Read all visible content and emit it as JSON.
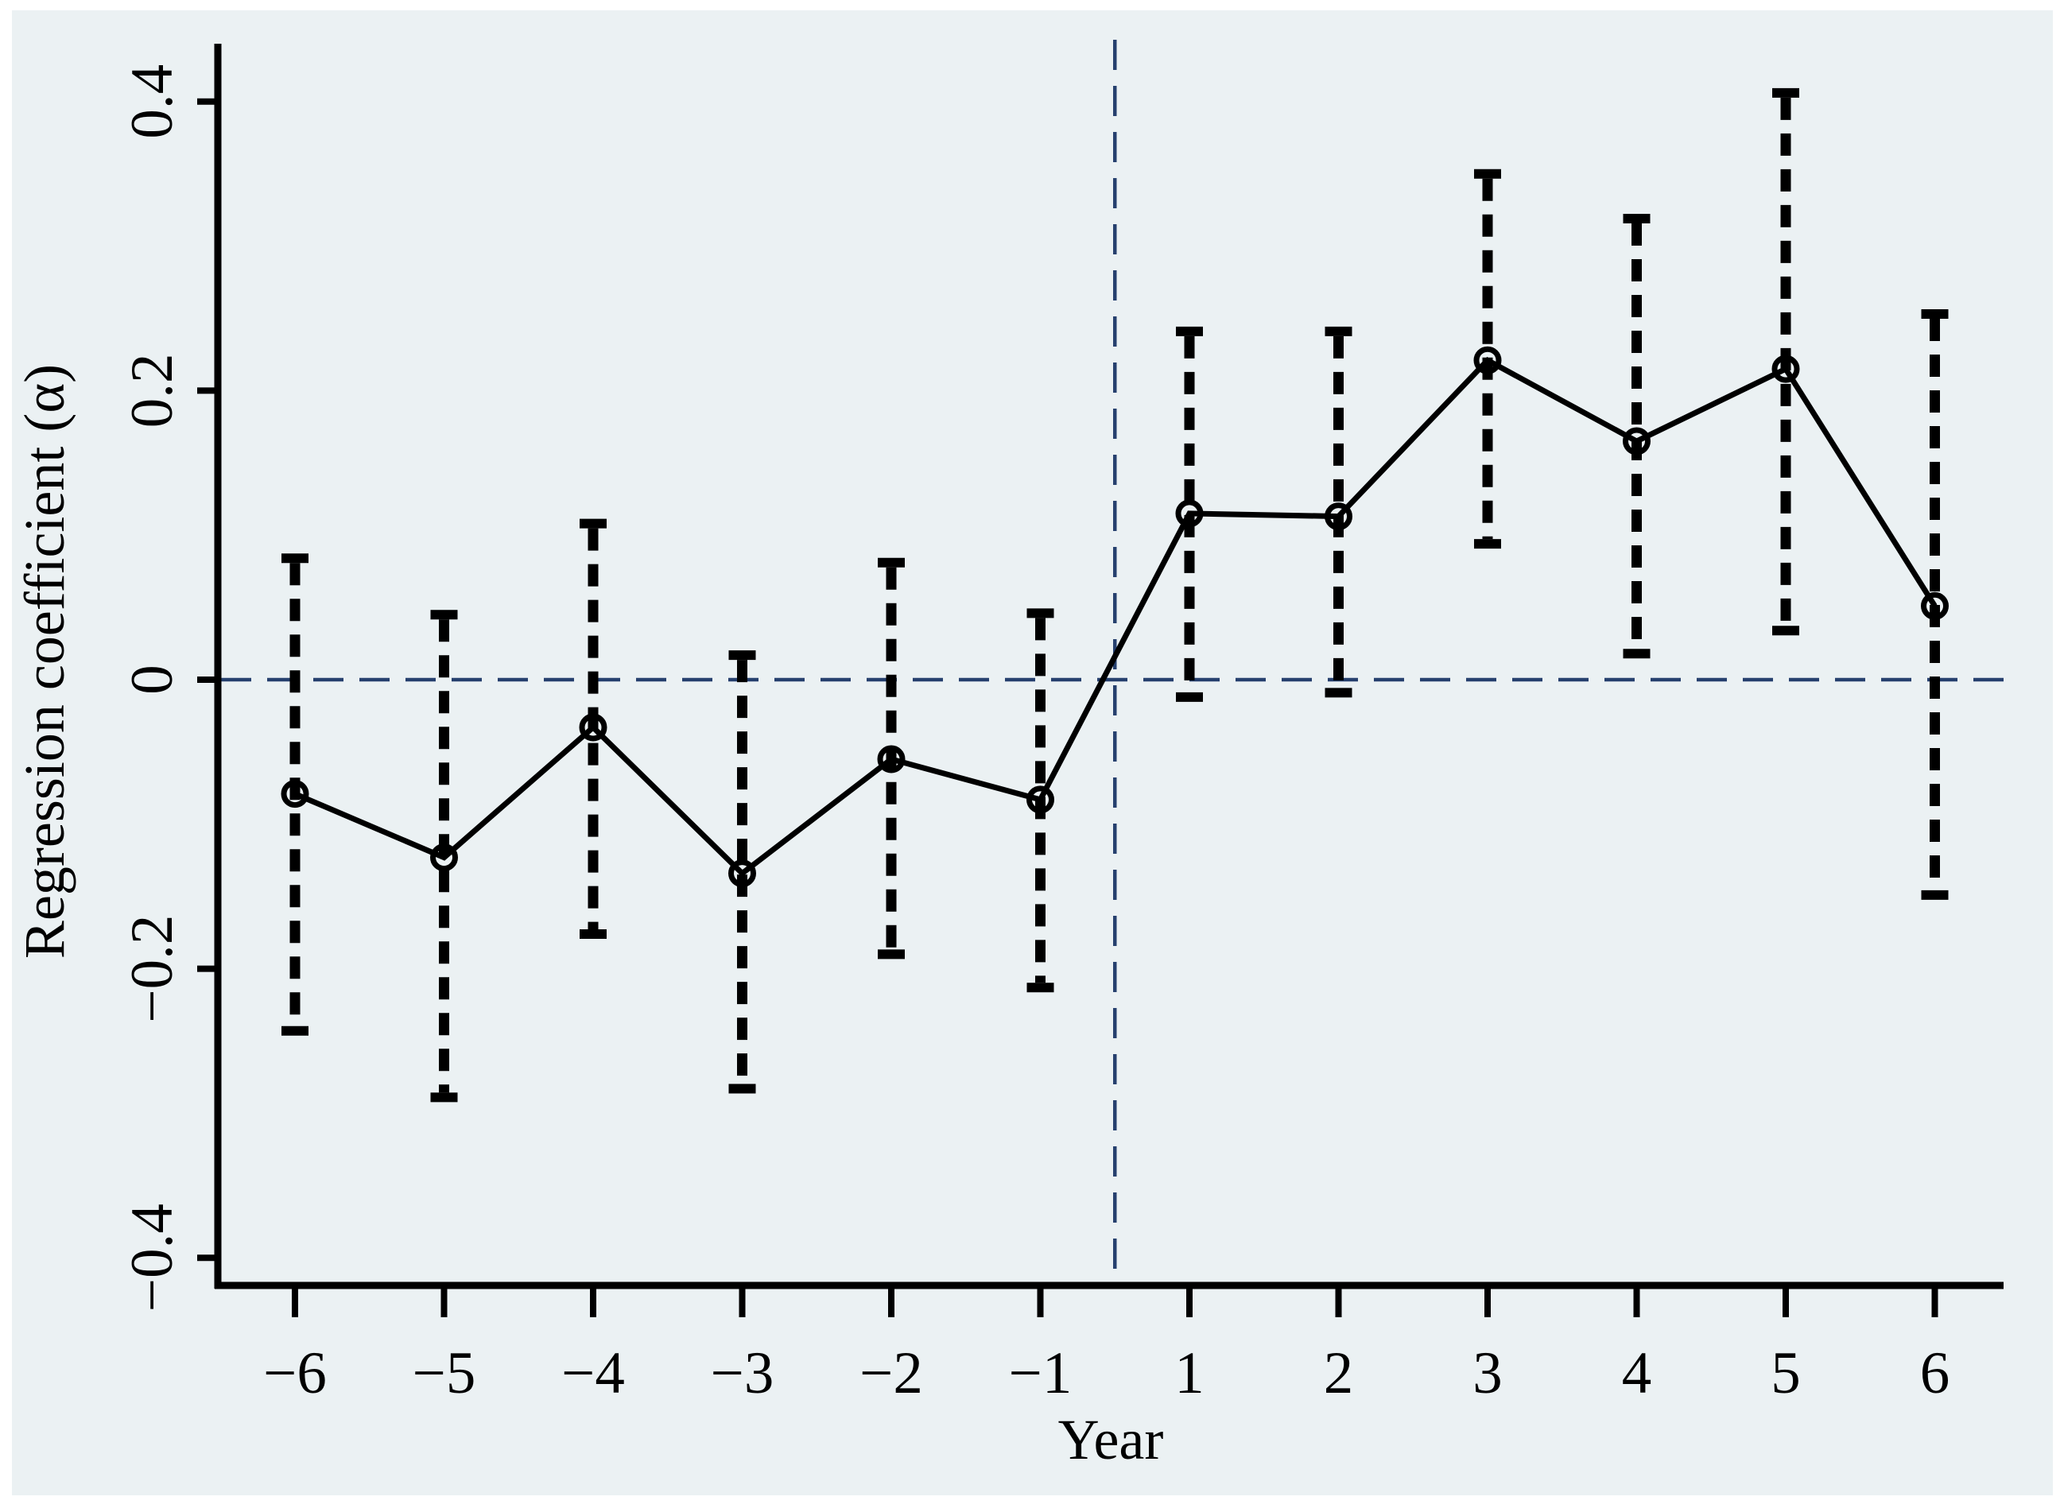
{
  "figure": {
    "y_axis_title": "Regression coefficient (α)",
    "x_axis_title": "Year",
    "colors": {
      "page_background": "#ffffff",
      "plot_background": "#ebf1f3",
      "series_color": "#000000",
      "reference_line_color": "#26406e"
    }
  },
  "chart_data": {
    "type": "line",
    "title": "",
    "xlabel": "Year",
    "ylabel": "Regression coefficient (α)",
    "categories": [
      "−6",
      "−5",
      "−4",
      "−3",
      "−2",
      "−1",
      "1",
      "2",
      "3",
      "4",
      "5",
      "6"
    ],
    "series": [
      {
        "name": "Regression coefficient (α)",
        "marker": "open-circle",
        "line_style": "solid",
        "error_bar_style": "dashed-with-caps",
        "values": [
          -0.079,
          -0.123,
          -0.033,
          -0.134,
          -0.055,
          -0.083,
          0.115,
          0.113,
          0.221,
          0.165,
          0.215,
          0.051
        ],
        "ci_low": [
          -0.243,
          -0.289,
          -0.176,
          -0.283,
          -0.19,
          -0.213,
          -0.012,
          -0.009,
          0.094,
          0.018,
          0.034,
          -0.149
        ],
        "ci_high": [
          0.084,
          0.045,
          0.108,
          0.017,
          0.081,
          0.046,
          0.241,
          0.241,
          0.35,
          0.319,
          0.406,
          0.253
        ]
      }
    ],
    "y_ticks": [
      0.4,
      0.2,
      0,
      -0.2,
      -0.4
    ],
    "y_tick_labels": [
      "0.4",
      "0.2",
      "0",
      "−0.2",
      "−0.4"
    ],
    "ylim": [
      -0.43,
      0.45
    ],
    "grid": "off",
    "legend": "none",
    "reference_lines": [
      {
        "orientation": "horizontal",
        "value": 0,
        "style": "dashed"
      },
      {
        "orientation": "vertical",
        "between_categories": [
          "−1",
          "1"
        ],
        "style": "dashed"
      }
    ]
  }
}
